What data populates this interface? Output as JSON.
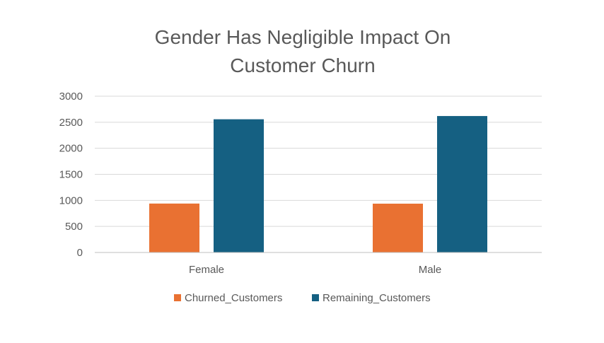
{
  "chart_data": {
    "type": "bar",
    "title_lines": [
      "Gender Has Negligible Impact On",
      "Customer Churn"
    ],
    "xlabel": "",
    "ylabel": "",
    "categories": [
      "Female",
      "Male"
    ],
    "series": [
      {
        "name": "Churned_Customers",
        "values": [
          939,
          937
        ],
        "color": "#E97132"
      },
      {
        "name": "Remaining_Customers",
        "values": [
          2557,
          2619
        ],
        "color": "#156082"
      }
    ],
    "ylim": [
      0,
      3000
    ],
    "yticks": [
      0,
      500,
      1000,
      1500,
      2000,
      2500,
      3000
    ],
    "grid": true,
    "legend_position": "bottom"
  }
}
